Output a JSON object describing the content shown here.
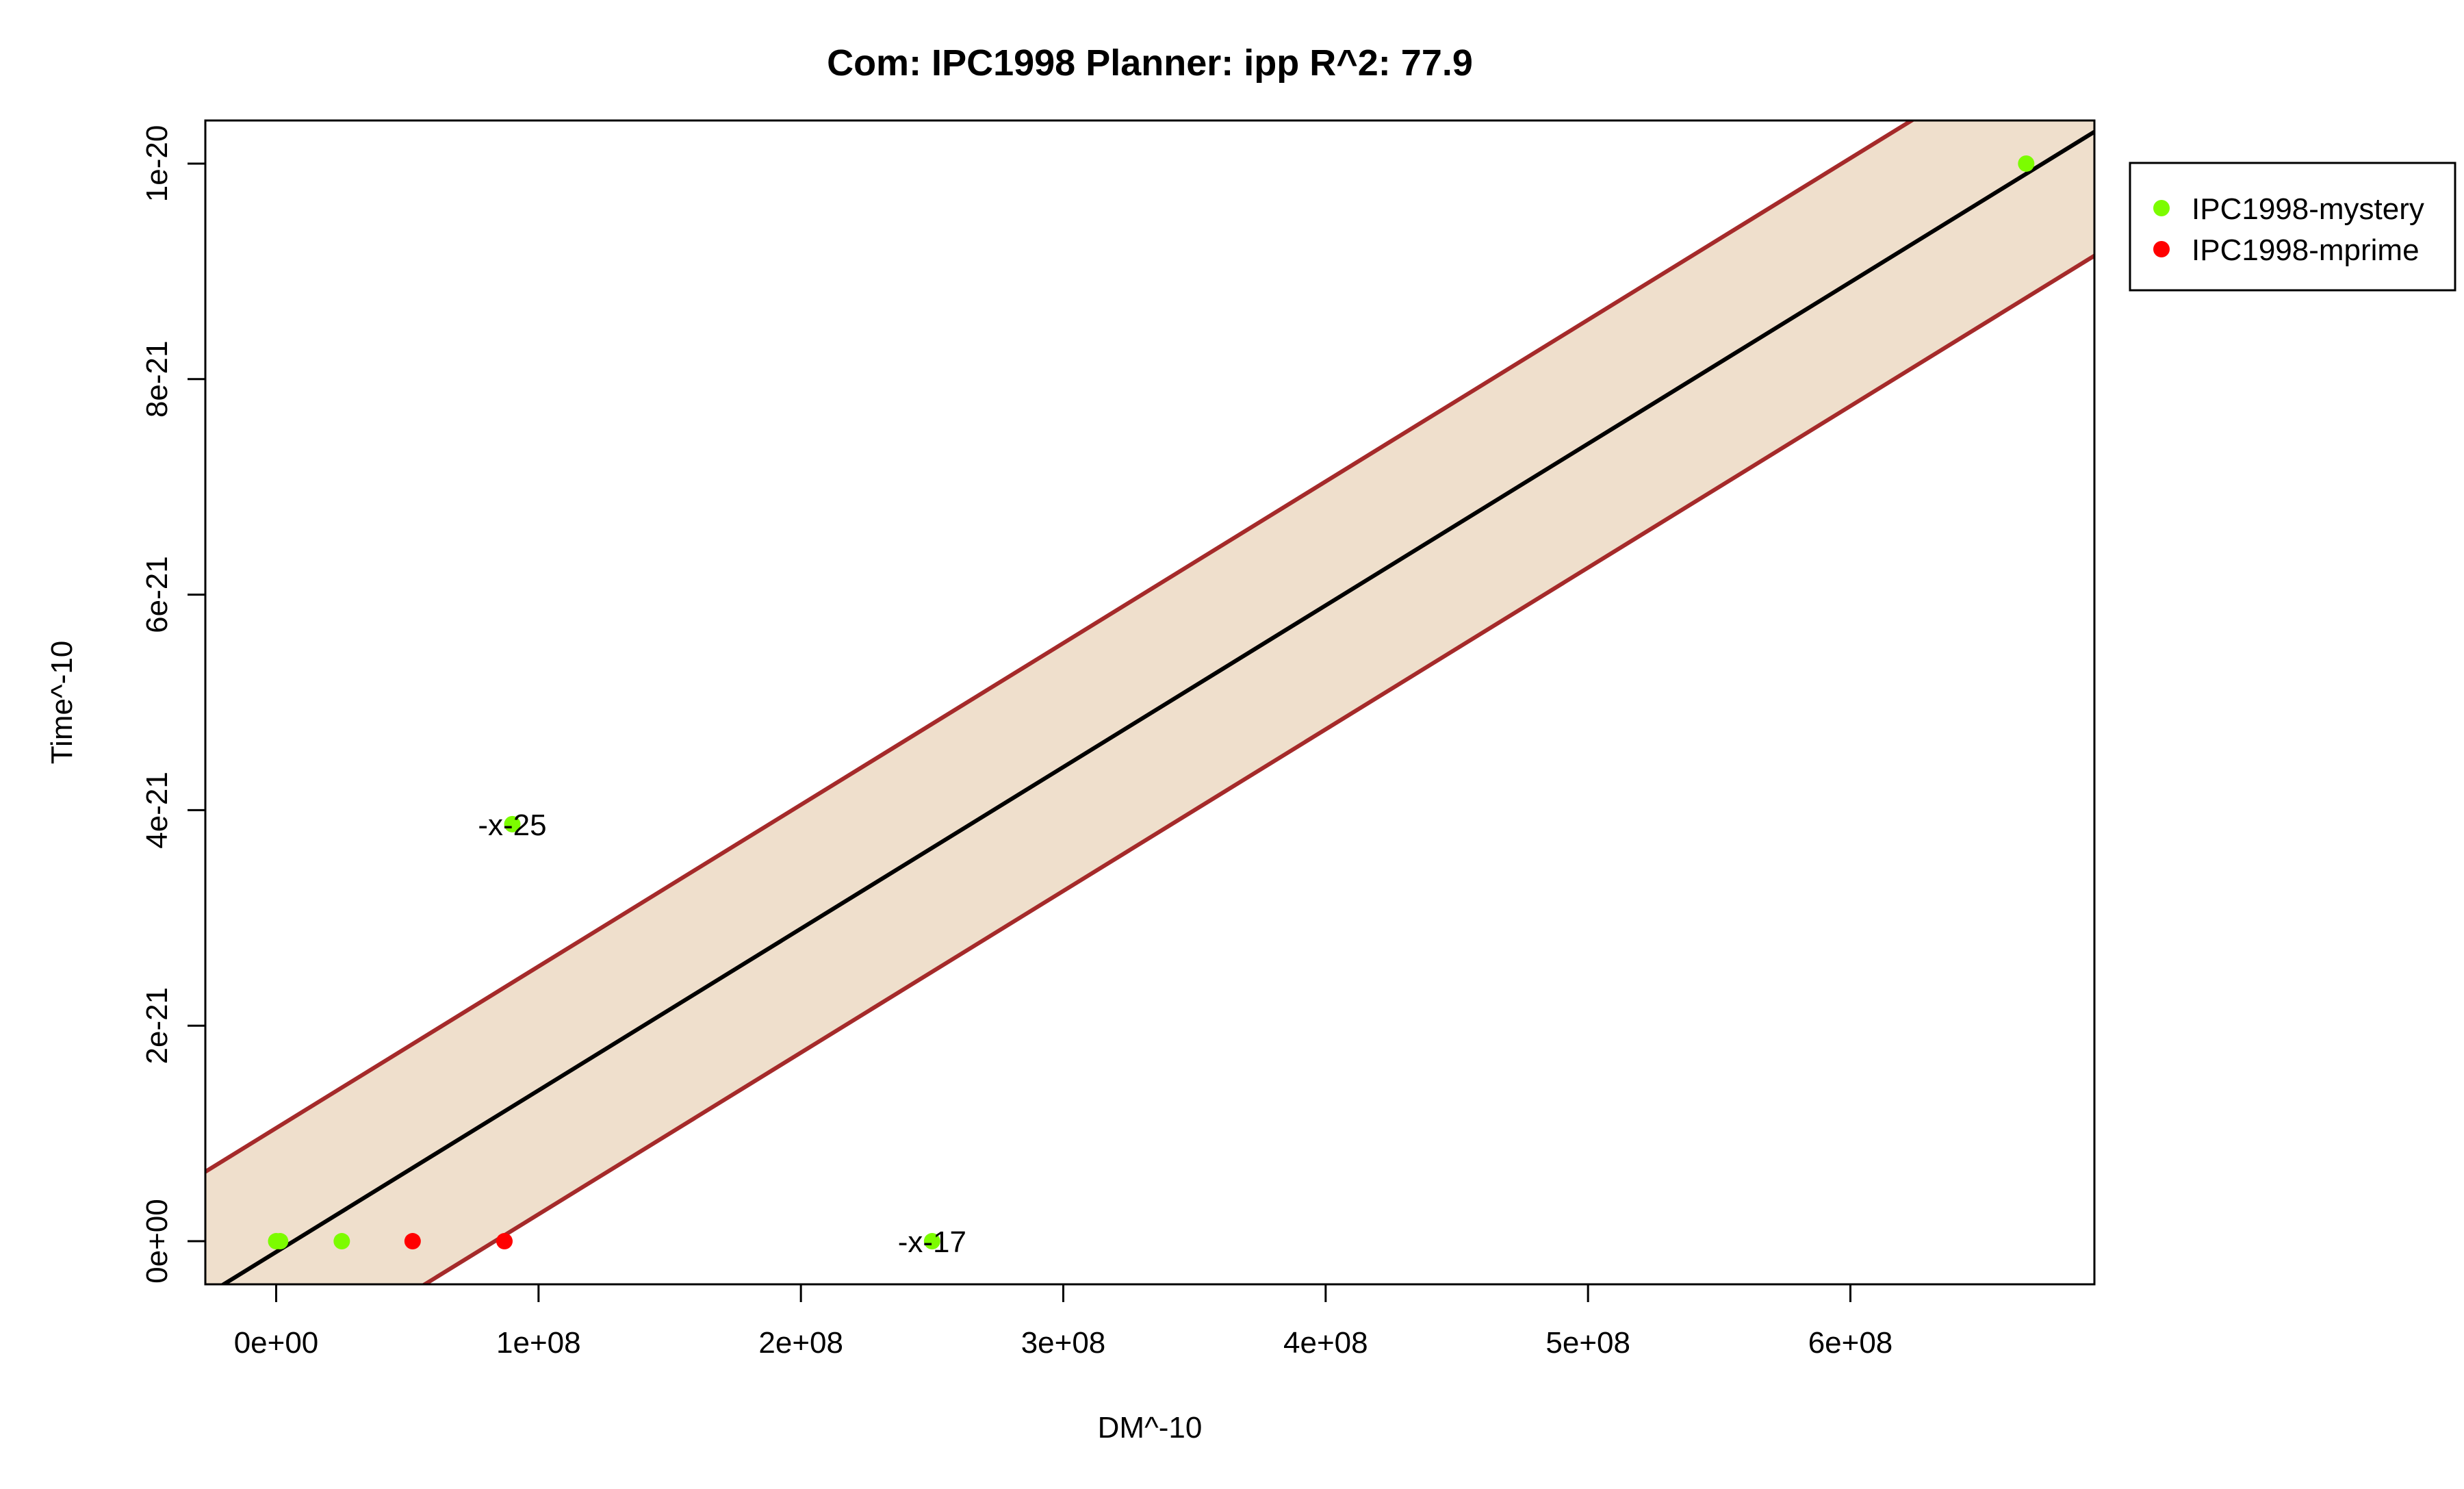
{
  "chart_data": {
    "type": "scatter",
    "title": "Com: IPC1998 Planner: ipp R^2: 77.9",
    "xlabel": "DM^-10",
    "ylabel": "Time^-10",
    "xlim": [
      -27000000.0,
      693000000.0
    ],
    "ylim": [
      -4e-22,
      1.04e-20
    ],
    "x_ticks": [
      0,
      100000000.0,
      200000000.0,
      300000000.0,
      400000000.0,
      500000000.0,
      600000000.0
    ],
    "x_tick_labels": [
      "0e+00",
      "1e+08",
      "2e+08",
      "3e+08",
      "4e+08",
      "5e+08",
      "6e+08"
    ],
    "y_ticks": [
      0,
      2e-21,
      4e-21,
      6e-21,
      8e-21,
      1e-20
    ],
    "y_tick_labels": [
      "0e+00",
      "2e-21",
      "4e-21",
      "6e-21",
      "8e-21",
      "1e-20"
    ],
    "fit_line": {
      "slope": 1.5e-29,
      "intercept": -1e-22,
      "color": "#000000"
    },
    "band": {
      "offset": 1.15e-21,
      "fill": "#efdfcc",
      "edge_color": "#a52a2a"
    },
    "series": [
      {
        "name": "IPC1998-mystery",
        "color": "#7cfc00",
        "points": [
          {
            "x": 0.0,
            "y": 0.0
          },
          {
            "x": 1500000.0,
            "y": 0.0
          },
          {
            "x": 25000000.0,
            "y": 0.0
          },
          {
            "x": 90000000.0,
            "y": 3.87e-21
          },
          {
            "x": 250000000.0,
            "y": 0.0
          },
          {
            "x": 667000000.0,
            "y": 1e-20
          }
        ]
      },
      {
        "name": "IPC1998-mprime",
        "color": "#ff0000",
        "points": [
          {
            "x": 52000000.0,
            "y": 0.0
          },
          {
            "x": 87000000.0,
            "y": 0.0
          }
        ]
      }
    ],
    "annotations": [
      {
        "text": "-x-25",
        "x": 90000000.0,
        "y": 3.87e-21
      },
      {
        "text": "-x-17",
        "x": 250000000.0,
        "y": 0.0
      }
    ],
    "legend_position": "top-right, outside plot",
    "grid": false
  }
}
